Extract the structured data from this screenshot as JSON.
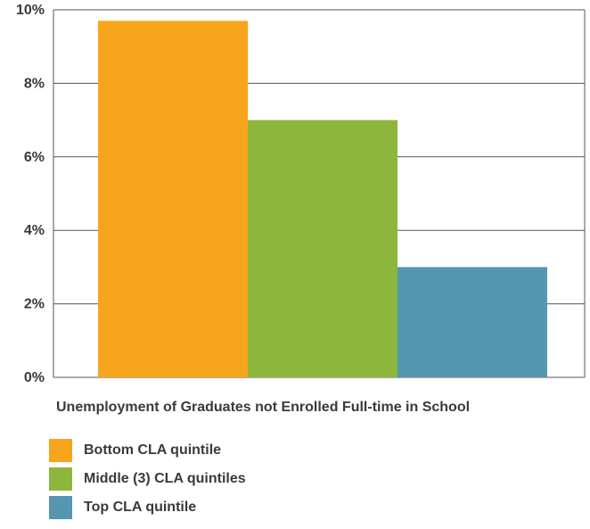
{
  "chart_data": {
    "type": "bar",
    "xlabel": "Unemployment of Graduates not Enrolled Full-time in School",
    "ylabel": "",
    "ylim": [
      0,
      10
    ],
    "yticks": [
      "0%",
      "2%",
      "4%",
      "6%",
      "8%",
      "10%"
    ],
    "grid": true,
    "legend_position": "bottom-left",
    "series": [
      {
        "name": "Bottom CLA quintile",
        "value": 9.7,
        "color": "#f7a51c"
      },
      {
        "name": "Middle (3) CLA quintiles",
        "value": 7.0,
        "color": "#8db63c"
      },
      {
        "name": "Top CLA quintile",
        "value": 3.0,
        "color": "#5596b0"
      }
    ]
  }
}
